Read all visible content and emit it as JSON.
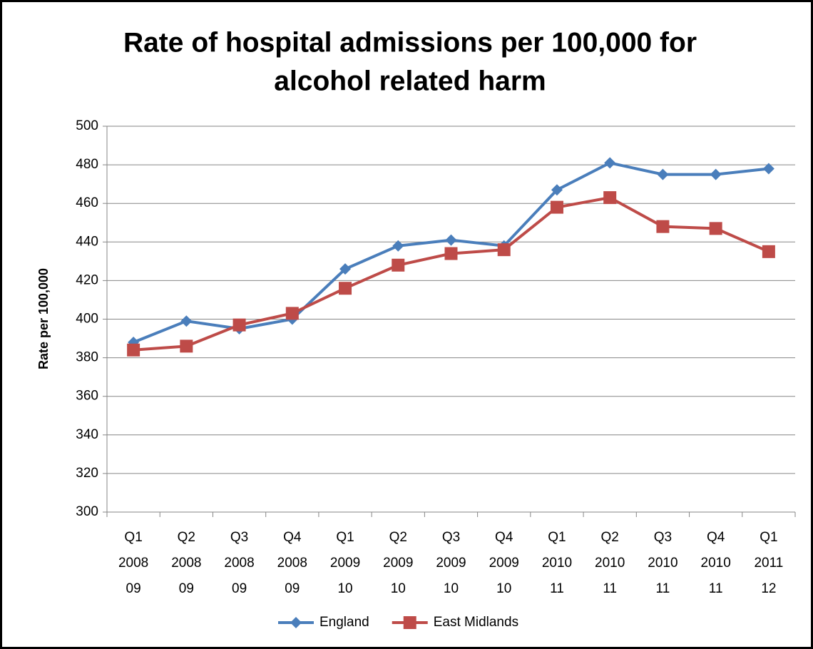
{
  "chart_data": {
    "type": "line",
    "title": [
      "Rate of hospital admissions per 100,000 for",
      "alcohol related harm"
    ],
    "y_label": "Rate per 100,000",
    "categories": [
      [
        "Q1",
        "2008",
        "09"
      ],
      [
        "Q2",
        "2008",
        "09"
      ],
      [
        "Q3",
        "2008",
        "09"
      ],
      [
        "Q4",
        "2008",
        "09"
      ],
      [
        "Q1",
        "2009",
        "10"
      ],
      [
        "Q2",
        "2009",
        "10"
      ],
      [
        "Q3",
        "2009",
        "10"
      ],
      [
        "Q4",
        "2009",
        "10"
      ],
      [
        "Q1",
        "2010",
        "11"
      ],
      [
        "Q2",
        "2010",
        "11"
      ],
      [
        "Q3",
        "2010",
        "11"
      ],
      [
        "Q4",
        "2010",
        "11"
      ],
      [
        "Q1",
        "2011",
        "12"
      ]
    ],
    "series": [
      {
        "name": "England",
        "color": "#4a7ebb",
        "marker": "diamond",
        "values": [
          388,
          399,
          395,
          400,
          426,
          438,
          441,
          438,
          467,
          481,
          475,
          475,
          478
        ]
      },
      {
        "name": "East Midlands",
        "color": "#be4b48",
        "marker": "square",
        "values": [
          384,
          386,
          397,
          403,
          416,
          428,
          434,
          436,
          458,
          463,
          448,
          447,
          435
        ]
      }
    ],
    "ylim": [
      300,
      500
    ],
    "yticks": [
      300,
      320,
      340,
      360,
      380,
      400,
      420,
      440,
      460,
      480,
      500
    ],
    "grid": true,
    "legend": "bottom"
  }
}
